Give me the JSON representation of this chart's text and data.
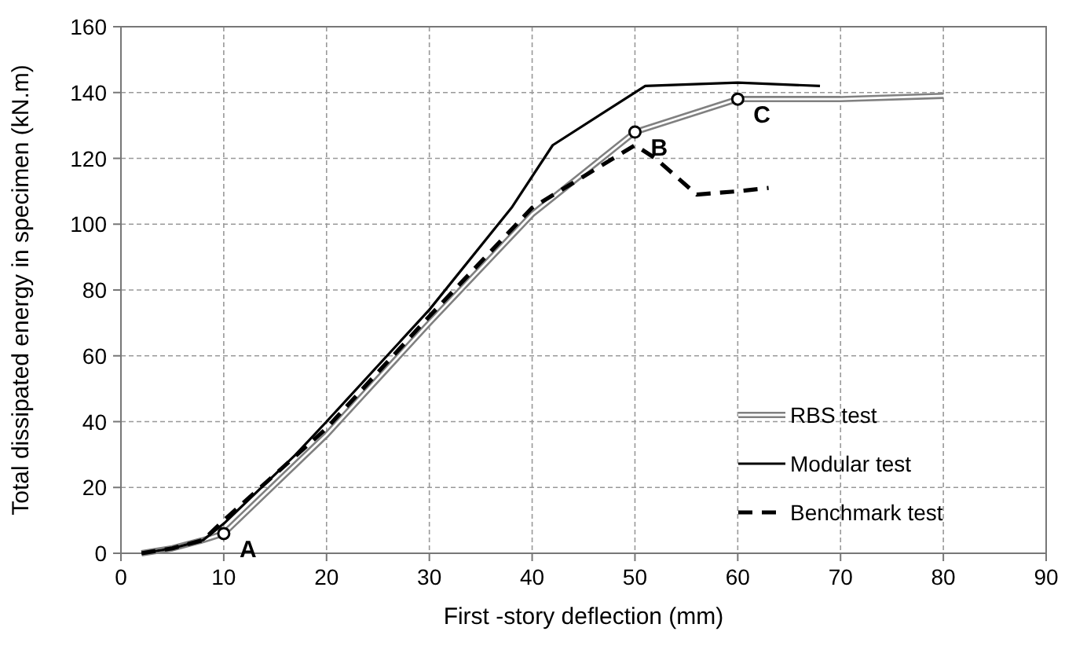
{
  "chart_data": {
    "type": "line",
    "xlabel": "First -story deflection (mm)",
    "ylabel": "Total dissipated energy in specimen (kN.m)",
    "xlim": [
      0,
      90
    ],
    "xticks": [
      0,
      10,
      20,
      30,
      40,
      50,
      60,
      70,
      80,
      90
    ],
    "ylim": [
      0,
      160
    ],
    "yticks": [
      0,
      20,
      40,
      60,
      80,
      100,
      120,
      140,
      160
    ],
    "grid": true,
    "legend": "right",
    "series": [
      {
        "name": "RBS test",
        "color": "#808080",
        "line_style": "solid",
        "x": [
          2,
          5,
          8,
          10,
          20,
          30,
          40,
          50,
          60,
          70,
          80
        ],
        "values": [
          0,
          1.5,
          4,
          6,
          36,
          70,
          103,
          128,
          138,
          138,
          139
        ]
      },
      {
        "name": "Modular test",
        "color": "#000000",
        "line_style": "solid",
        "x": [
          2,
          5,
          8,
          10,
          17,
          20,
          30,
          38,
          42,
          51,
          60,
          68
        ],
        "values": [
          0,
          1.5,
          4,
          9,
          30,
          40,
          74,
          105,
          124,
          142,
          143,
          142
        ]
      },
      {
        "name": "Benchmark test",
        "color": "#000000",
        "line_style": "dashed",
        "x": [
          2,
          5,
          8,
          10,
          20,
          30,
          40,
          50,
          52,
          56,
          60,
          63
        ],
        "values": [
          0,
          1.5,
          4,
          10,
          38,
          72,
          105,
          124,
          120,
          109,
          110,
          111
        ]
      }
    ],
    "annotations": [
      {
        "text": "A",
        "x": 10,
        "y": 6
      },
      {
        "text": "B",
        "x": 50,
        "y": 128
      },
      {
        "text": "C",
        "x": 60,
        "y": 138
      }
    ]
  }
}
